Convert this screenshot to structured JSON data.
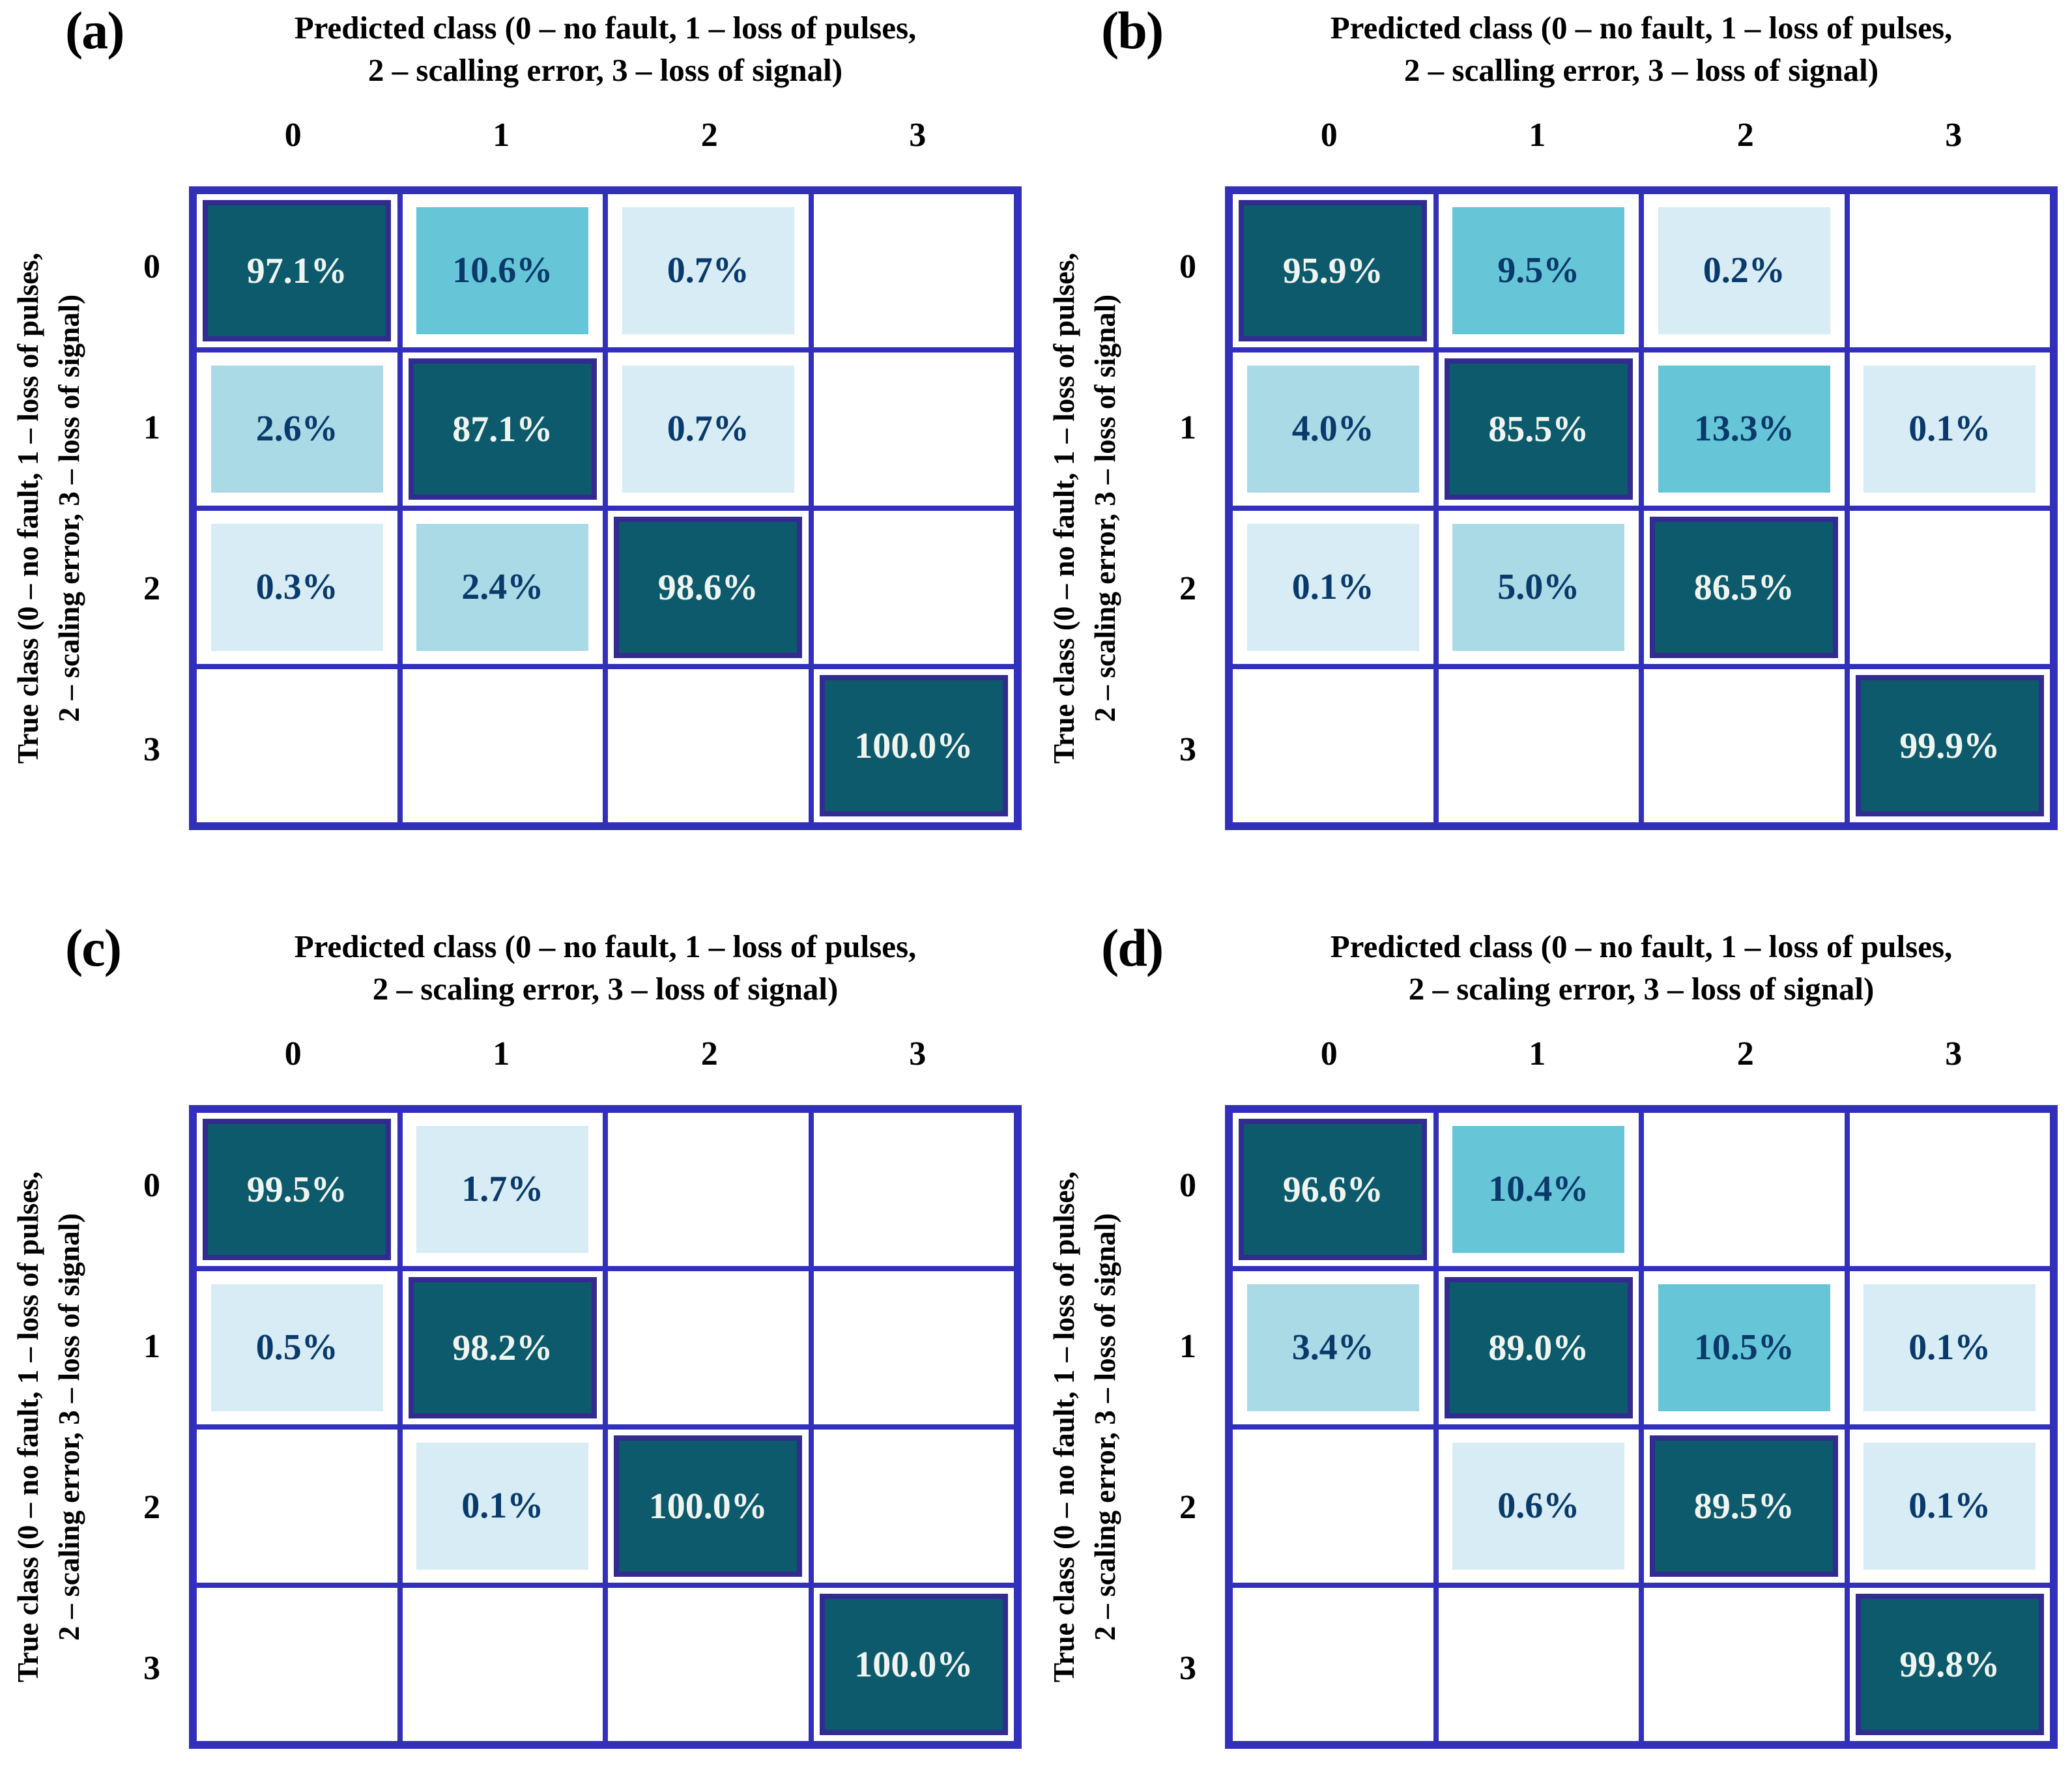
{
  "colors": {
    "grid_line": "#3230bb",
    "diag_cell_border": "#322b90",
    "cell_dark": "#0c5a6c",
    "cell_mid": "#66c6d8",
    "cell_light": "#a9dae6",
    "cell_xlight": "#d7ecf4",
    "text_on_dark": "#f0f4ef",
    "text_on_light": "#093a6b",
    "heading_text": "#000000",
    "background": "#ffffff"
  },
  "figure": {
    "panels": [
      {
        "label": "(a)",
        "title_line1": "Predicted class (0 – no fault, 1 – loss of pulses,",
        "title_line2": "2 – scalling error, 3 – loss of signal)",
        "ylabel_line1": "True class (0 – no fault, 1 – loss of pulses,",
        "ylabel_line2": "2 – scaling error, 3 – loss of signal)",
        "col_ticks": [
          "0",
          "1",
          "2",
          "3"
        ],
        "row_ticks": [
          "0",
          "1",
          "2",
          "3"
        ],
        "cells": [
          [
            {
              "value": "97.1%",
              "level": "dark"
            },
            {
              "value": "10.6%",
              "level": "mid"
            },
            {
              "value": "0.7%",
              "level": "xlight"
            },
            {
              "value": "",
              "level": "empty"
            }
          ],
          [
            {
              "value": "2.6%",
              "level": "light"
            },
            {
              "value": "87.1%",
              "level": "dark"
            },
            {
              "value": "0.7%",
              "level": "xlight"
            },
            {
              "value": "",
              "level": "empty"
            }
          ],
          [
            {
              "value": "0.3%",
              "level": "xlight"
            },
            {
              "value": "2.4%",
              "level": "light"
            },
            {
              "value": "98.6%",
              "level": "dark"
            },
            {
              "value": "",
              "level": "empty"
            }
          ],
          [
            {
              "value": "",
              "level": "empty"
            },
            {
              "value": "",
              "level": "empty"
            },
            {
              "value": "",
              "level": "empty"
            },
            {
              "value": "100.0%",
              "level": "dark"
            }
          ]
        ]
      },
      {
        "label": "(b)",
        "title_line1": "Predicted class (0 – no fault, 1 – loss of pulses,",
        "title_line2": "2 – scalling error, 3 – loss of signal)",
        "ylabel_line1": "True class (0 – no fault, 1 – loss of pulses,",
        "ylabel_line2": "2 – scaling error, 3 – loss of signal)",
        "col_ticks": [
          "0",
          "1",
          "2",
          "3"
        ],
        "row_ticks": [
          "0",
          "1",
          "2",
          "3"
        ],
        "cells": [
          [
            {
              "value": "95.9%",
              "level": "dark"
            },
            {
              "value": "9.5%",
              "level": "mid"
            },
            {
              "value": "0.2%",
              "level": "xlight"
            },
            {
              "value": "",
              "level": "empty"
            }
          ],
          [
            {
              "value": "4.0%",
              "level": "light"
            },
            {
              "value": "85.5%",
              "level": "dark"
            },
            {
              "value": "13.3%",
              "level": "mid"
            },
            {
              "value": "0.1%",
              "level": "xlight"
            }
          ],
          [
            {
              "value": "0.1%",
              "level": "xlight"
            },
            {
              "value": "5.0%",
              "level": "light"
            },
            {
              "value": "86.5%",
              "level": "dark"
            },
            {
              "value": "",
              "level": "empty"
            }
          ],
          [
            {
              "value": "",
              "level": "empty"
            },
            {
              "value": "",
              "level": "empty"
            },
            {
              "value": "",
              "level": "empty"
            },
            {
              "value": "99.9%",
              "level": "dark"
            }
          ]
        ]
      },
      {
        "label": "(c)",
        "title_line1": "Predicted class (0 – no fault, 1 – loss of pulses,",
        "title_line2": "2 – scaling error, 3 – loss of signal)",
        "ylabel_line1": "True class (0 – no fault, 1 – loss of pulses,",
        "ylabel_line2": "2 – scaling error, 3 – loss of signal)",
        "col_ticks": [
          "0",
          "1",
          "2",
          "3"
        ],
        "row_ticks": [
          "0",
          "1",
          "2",
          "3"
        ],
        "cells": [
          [
            {
              "value": "99.5%",
              "level": "dark"
            },
            {
              "value": "1.7%",
              "level": "xlight"
            },
            {
              "value": "",
              "level": "empty"
            },
            {
              "value": "",
              "level": "empty"
            }
          ],
          [
            {
              "value": "0.5%",
              "level": "xlight"
            },
            {
              "value": "98.2%",
              "level": "dark"
            },
            {
              "value": "",
              "level": "empty"
            },
            {
              "value": "",
              "level": "empty"
            }
          ],
          [
            {
              "value": "",
              "level": "empty"
            },
            {
              "value": "0.1%",
              "level": "xlight"
            },
            {
              "value": "100.0%",
              "level": "dark"
            },
            {
              "value": "",
              "level": "empty"
            }
          ],
          [
            {
              "value": "",
              "level": "empty"
            },
            {
              "value": "",
              "level": "empty"
            },
            {
              "value": "",
              "level": "empty"
            },
            {
              "value": "100.0%",
              "level": "dark"
            }
          ]
        ]
      },
      {
        "label": "(d)",
        "title_line1": "Predicted class (0 – no fault, 1 – loss of pulses,",
        "title_line2": "2 – scaling error, 3 – loss of signal)",
        "ylabel_line1": "True class (0 – no fault, 1 – loss of pulses,",
        "ylabel_line2": "2 – scaling error, 3 – loss of signal)",
        "col_ticks": [
          "0",
          "1",
          "2",
          "3"
        ],
        "row_ticks": [
          "0",
          "1",
          "2",
          "3"
        ],
        "cells": [
          [
            {
              "value": "96.6%",
              "level": "dark"
            },
            {
              "value": "10.4%",
              "level": "mid"
            },
            {
              "value": "",
              "level": "empty"
            },
            {
              "value": "",
              "level": "empty"
            }
          ],
          [
            {
              "value": "3.4%",
              "level": "light"
            },
            {
              "value": "89.0%",
              "level": "dark"
            },
            {
              "value": "10.5%",
              "level": "mid"
            },
            {
              "value": "0.1%",
              "level": "xlight"
            }
          ],
          [
            {
              "value": "",
              "level": "empty"
            },
            {
              "value": "0.6%",
              "level": "xlight"
            },
            {
              "value": "89.5%",
              "level": "dark"
            },
            {
              "value": "0.1%",
              "level": "xlight"
            }
          ],
          [
            {
              "value": "",
              "level": "empty"
            },
            {
              "value": "",
              "level": "empty"
            },
            {
              "value": "",
              "level": "empty"
            },
            {
              "value": "99.8%",
              "level": "dark"
            }
          ]
        ]
      }
    ]
  },
  "chart_data": [
    {
      "type": "heatmap",
      "panel": "(a)",
      "title": "Predicted class (0 – no fault, 1 – loss of pulses, 2 – scalling error, 3 – loss of signal)",
      "xlabel": "Predicted class",
      "ylabel": "True class (0 – no fault, 1 – loss of pulses, 2 – scaling error, 3 – loss of signal)",
      "x_categories": [
        "0",
        "1",
        "2",
        "3"
      ],
      "y_categories": [
        "0",
        "1",
        "2",
        "3"
      ],
      "values_percent": [
        [
          97.1,
          10.6,
          0.7,
          null
        ],
        [
          2.6,
          87.1,
          0.7,
          null
        ],
        [
          0.3,
          2.4,
          98.6,
          null
        ],
        [
          null,
          null,
          null,
          100.0
        ]
      ]
    },
    {
      "type": "heatmap",
      "panel": "(b)",
      "title": "Predicted class (0 – no fault, 1 – loss of pulses, 2 – scalling error, 3 – loss of signal)",
      "xlabel": "Predicted class",
      "ylabel": "True class (0 – no fault, 1 – loss of pulses, 2 – scaling error, 3 – loss of signal)",
      "x_categories": [
        "0",
        "1",
        "2",
        "3"
      ],
      "y_categories": [
        "0",
        "1",
        "2",
        "3"
      ],
      "values_percent": [
        [
          95.9,
          9.5,
          0.2,
          null
        ],
        [
          4.0,
          85.5,
          13.3,
          0.1
        ],
        [
          0.1,
          5.0,
          86.5,
          null
        ],
        [
          null,
          null,
          null,
          99.9
        ]
      ]
    },
    {
      "type": "heatmap",
      "panel": "(c)",
      "title": "Predicted class (0 – no fault, 1 – loss of pulses, 2 – scaling error, 3 – loss of signal)",
      "xlabel": "Predicted class",
      "ylabel": "True class (0 – no fault, 1 – loss of pulses, 2 – scaling error, 3 – loss of signal)",
      "x_categories": [
        "0",
        "1",
        "2",
        "3"
      ],
      "y_categories": [
        "0",
        "1",
        "2",
        "3"
      ],
      "values_percent": [
        [
          99.5,
          1.7,
          null,
          null
        ],
        [
          0.5,
          98.2,
          null,
          null
        ],
        [
          null,
          0.1,
          100.0,
          null
        ],
        [
          null,
          null,
          null,
          100.0
        ]
      ]
    },
    {
      "type": "heatmap",
      "panel": "(d)",
      "title": "Predicted class (0 – no fault, 1 – loss of pulses, 2 – scaling error, 3 – loss of signal)",
      "xlabel": "Predicted class",
      "ylabel": "True class (0 – no fault, 1 – loss of pulses, 2 – scaling error, 3 – loss of signal)",
      "x_categories": [
        "0",
        "1",
        "2",
        "3"
      ],
      "y_categories": [
        "0",
        "1",
        "2",
        "3"
      ],
      "values_percent": [
        [
          96.6,
          10.4,
          null,
          null
        ],
        [
          3.4,
          89.0,
          10.5,
          0.1
        ],
        [
          null,
          0.6,
          89.5,
          0.1
        ],
        [
          null,
          null,
          null,
          99.8
        ]
      ]
    }
  ]
}
